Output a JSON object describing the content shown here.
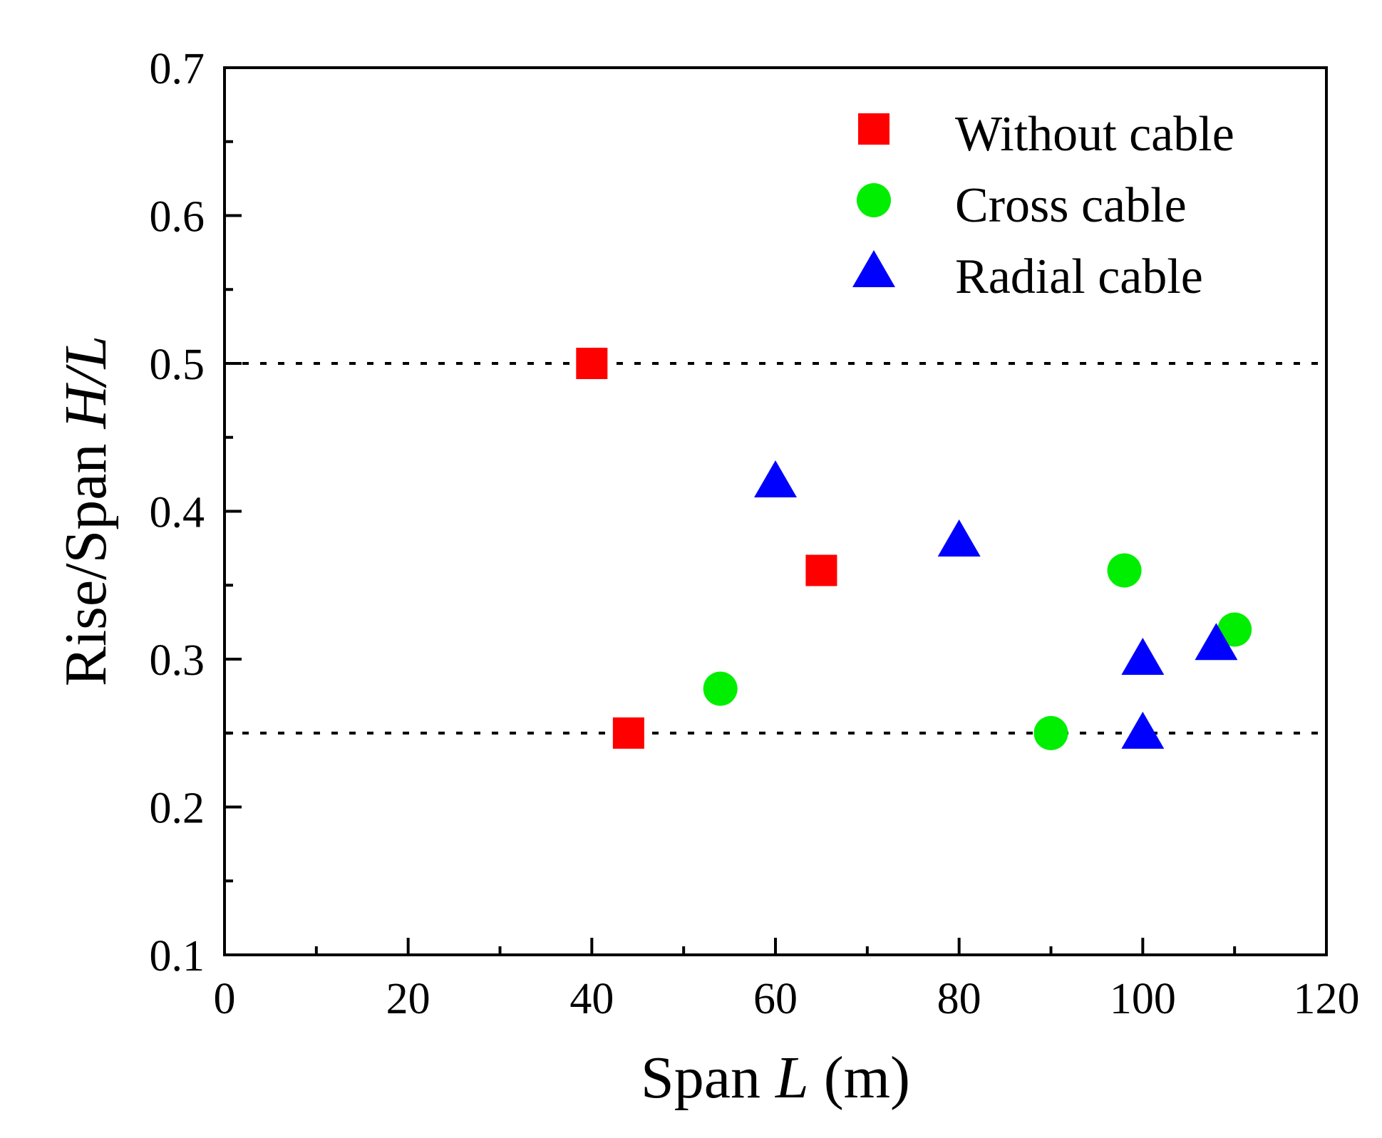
{
  "chart_data": {
    "type": "scatter",
    "title": "",
    "xlabel": {
      "prefix": "Span ",
      "var": "L",
      "suffix": " (m)"
    },
    "ylabel": {
      "prefix": "Rise/Span ",
      "var": "H/L"
    },
    "xlim": [
      0,
      120
    ],
    "ylim": [
      0.1,
      0.7
    ],
    "xticks": [
      0,
      20,
      40,
      60,
      80,
      100,
      120
    ],
    "xtick_labels": [
      "0",
      "20",
      "40",
      "60",
      "80",
      "100",
      "120"
    ],
    "yticks": [
      0.1,
      0.2,
      0.3,
      0.4,
      0.5,
      0.6,
      0.7
    ],
    "ytick_labels": [
      "0.1",
      "0.2",
      "0.3",
      "0.4",
      "0.5",
      "0.6",
      "0.7"
    ],
    "x_minor_step": 10,
    "y_minor_step": 0.05,
    "grid": false,
    "legend_position": "top-right",
    "reference_lines": [
      {
        "y": 0.5,
        "style": "dotted",
        "color": "#000000"
      },
      {
        "y": 0.25,
        "style": "dotted",
        "color": "#000000"
      }
    ],
    "series": [
      {
        "name": "Without cable",
        "marker": "square",
        "color": "#ff0000",
        "x": [
          40,
          44,
          65
        ],
        "y": [
          0.5,
          0.25,
          0.36
        ]
      },
      {
        "name": "Cross cable",
        "marker": "circle",
        "color": "#00ee00",
        "x": [
          54,
          90,
          98,
          110
        ],
        "y": [
          0.28,
          0.25,
          0.36,
          0.32
        ]
      },
      {
        "name": "Radial cable",
        "marker": "triangle",
        "color": "#0000ff",
        "x": [
          60,
          80,
          100,
          100,
          108
        ],
        "y": [
          0.42,
          0.38,
          0.3,
          0.25,
          0.31
        ]
      }
    ]
  }
}
